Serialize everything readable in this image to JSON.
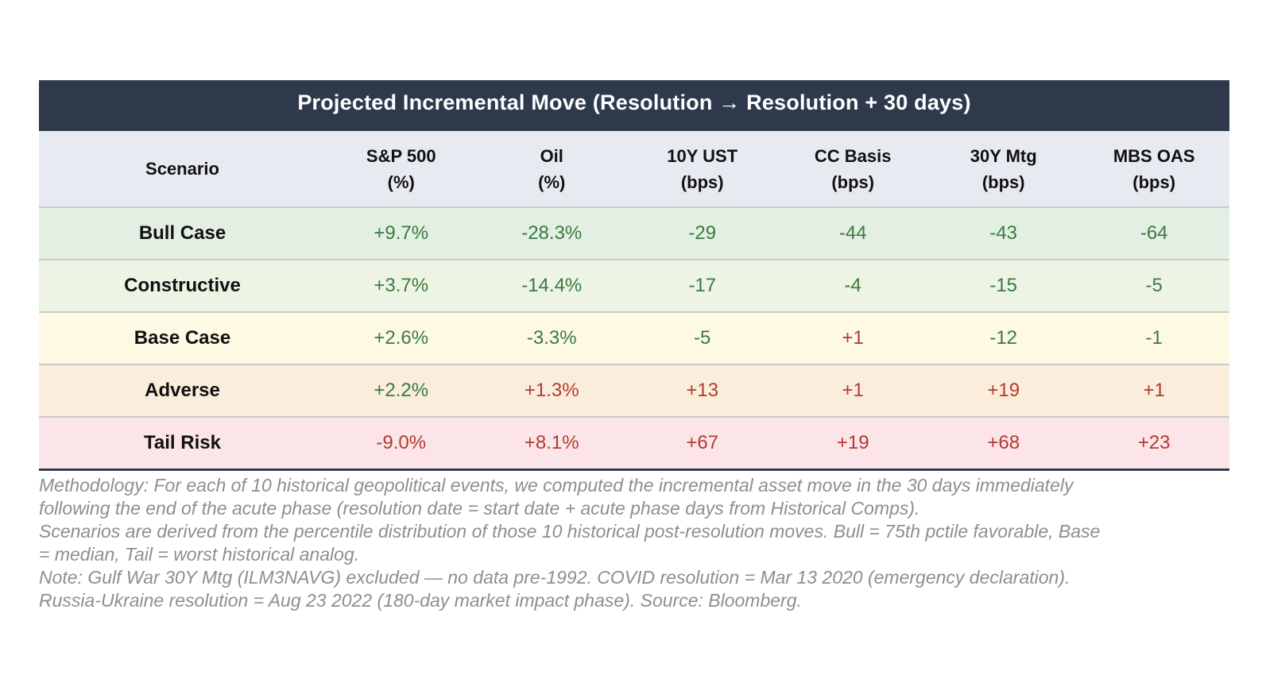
{
  "chart_data": {
    "type": "table",
    "title": "Projected Incremental Move (Resolution → Resolution + 30 days)",
    "columns": [
      {
        "label": "Scenario",
        "unit": ""
      },
      {
        "label": "S&P 500",
        "unit": "(%)"
      },
      {
        "label": "Oil",
        "unit": "(%)"
      },
      {
        "label": "10Y UST",
        "unit": "(bps)"
      },
      {
        "label": "CC Basis",
        "unit": "(bps)"
      },
      {
        "label": "30Y Mtg",
        "unit": "(bps)"
      },
      {
        "label": "MBS OAS",
        "unit": "(bps)"
      }
    ],
    "rows": [
      {
        "scenario": "Bull Case",
        "bg": "#e3efe2",
        "values": [
          {
            "text": "+9.7%",
            "tone": "green"
          },
          {
            "text": "-28.3%",
            "tone": "green"
          },
          {
            "text": "-29",
            "tone": "green"
          },
          {
            "text": "-44",
            "tone": "green"
          },
          {
            "text": "-43",
            "tone": "green"
          },
          {
            "text": "-64",
            "tone": "green"
          }
        ]
      },
      {
        "scenario": "Constructive",
        "bg": "#edf4e3",
        "values": [
          {
            "text": "+3.7%",
            "tone": "green"
          },
          {
            "text": "-14.4%",
            "tone": "green"
          },
          {
            "text": "-17",
            "tone": "green"
          },
          {
            "text": "-4",
            "tone": "green"
          },
          {
            "text": "-15",
            "tone": "green"
          },
          {
            "text": "-5",
            "tone": "green"
          }
        ]
      },
      {
        "scenario": "Base Case",
        "bg": "#fdf9e3",
        "values": [
          {
            "text": "+2.6%",
            "tone": "green"
          },
          {
            "text": "-3.3%",
            "tone": "green"
          },
          {
            "text": "-5",
            "tone": "green"
          },
          {
            "text": "+1",
            "tone": "red"
          },
          {
            "text": "-12",
            "tone": "green"
          },
          {
            "text": "-1",
            "tone": "green"
          }
        ]
      },
      {
        "scenario": "Adverse",
        "bg": "#fbeddb",
        "values": [
          {
            "text": "+2.2%",
            "tone": "green"
          },
          {
            "text": "+1.3%",
            "tone": "red"
          },
          {
            "text": "+13",
            "tone": "red"
          },
          {
            "text": "+1",
            "tone": "red"
          },
          {
            "text": "+19",
            "tone": "red"
          },
          {
            "text": "+1",
            "tone": "red"
          }
        ]
      },
      {
        "scenario": "Tail Risk",
        "bg": "#fce5e8",
        "values": [
          {
            "text": "-9.0%",
            "tone": "red"
          },
          {
            "text": "+8.1%",
            "tone": "red"
          },
          {
            "text": "+67",
            "tone": "red"
          },
          {
            "text": "+19",
            "tone": "red"
          },
          {
            "text": "+68",
            "tone": "red"
          },
          {
            "text": "+23",
            "tone": "red"
          }
        ]
      }
    ]
  },
  "colors": {
    "green": "#3a7a3e",
    "red": "#b43a31",
    "header_bar": "#2e3a4c",
    "header_row_bg": "#e8eaf1"
  },
  "footnotes": {
    "lines": [
      "Methodology: For each of 10 historical geopolitical events, we computed the incremental asset move in the 30 days immediately",
      "following the end of the acute phase (resolution date = start date + acute phase days from Historical Comps).",
      "Scenarios are derived from the percentile distribution of those 10 historical post-resolution moves. Bull = 75th pctile favorable, Base",
      "= median, Tail = worst historical analog.",
      "Note: Gulf War 30Y Mtg (ILM3NAVG) excluded — no data pre-1992. COVID resolution = Mar 13 2020 (emergency declaration).",
      "Russia-Ukraine resolution = Aug 23 2022 (180-day market impact phase). Source: Bloomberg."
    ]
  }
}
